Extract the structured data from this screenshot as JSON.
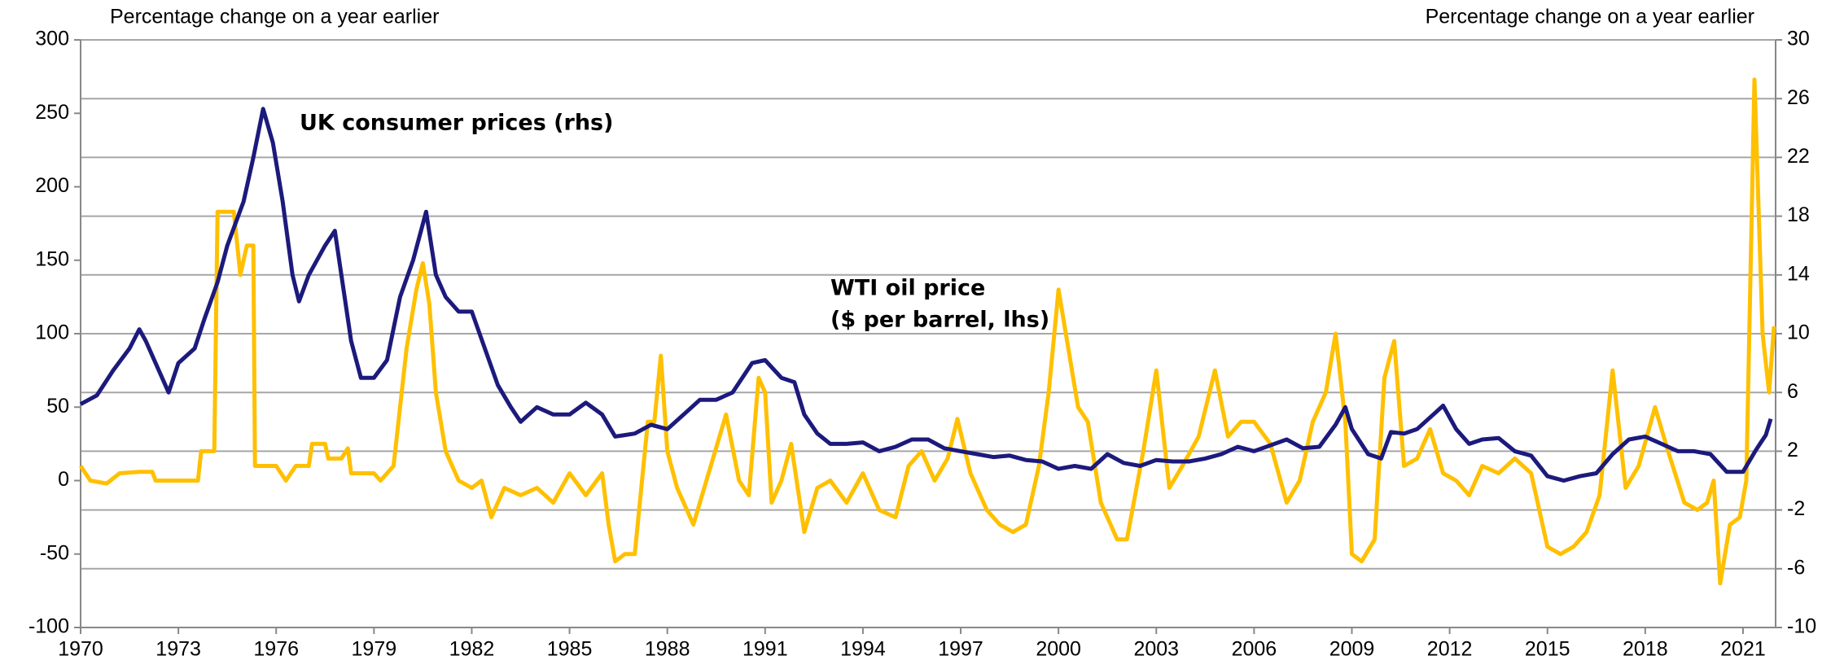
{
  "chart_data": {
    "type": "line",
    "ylabel": "Percentage change on a year earlier",
    "y2label": "Percentage change on a year earlier",
    "xlim": [
      1970,
      2022
    ],
    "xticks": [
      1970,
      1973,
      1976,
      1979,
      1982,
      1985,
      1988,
      1991,
      1994,
      1997,
      2000,
      2003,
      2006,
      2009,
      2012,
      2015,
      2018,
      2021
    ],
    "ylim": [
      -100,
      300
    ],
    "yticks": [
      -100,
      -50,
      0,
      50,
      100,
      150,
      200,
      250,
      300
    ],
    "y2lim": [
      -10,
      30
    ],
    "y2ticks": [
      -10,
      -6,
      -2,
      2,
      6,
      10,
      14,
      18,
      22,
      26,
      30
    ],
    "grid": true,
    "series": [
      {
        "name": "UK consumer prices (rhs)",
        "color": "#1c1a7c",
        "axis": "y2",
        "x": [
          1970,
          1970.5,
          1971,
          1971.5,
          1971.8,
          1972,
          1972.3,
          1972.7,
          1973,
          1973.5,
          1973.8,
          1974.2,
          1974.5,
          1975,
          1975.3,
          1975.6,
          1975.9,
          1976.2,
          1976.5,
          1976.7,
          1977,
          1977.5,
          1977.8,
          1978,
          1978.3,
          1978.6,
          1979,
          1979.4,
          1979.8,
          1980.2,
          1980.6,
          1980.9,
          1981.2,
          1981.6,
          1982,
          1982.4,
          1982.8,
          1983.2,
          1983.5,
          1984,
          1984.5,
          1985,
          1985.5,
          1986,
          1986.4,
          1987,
          1987.5,
          1988,
          1988.5,
          1989,
          1989.5,
          1990,
          1990.6,
          1991,
          1991.5,
          1991.9,
          1992.2,
          1992.6,
          1993,
          1993.5,
          1994,
          1994.5,
          1995,
          1995.5,
          1996,
          1996.5,
          1997,
          1997.5,
          1998,
          1998.5,
          1999,
          1999.5,
          2000,
          2000.5,
          2001,
          2001.5,
          2002,
          2002.5,
          2003,
          2003.5,
          2004,
          2004.5,
          2005,
          2005.5,
          2006,
          2006.5,
          2007,
          2007.5,
          2008,
          2008.5,
          2008.8,
          2009,
          2009.5,
          2009.9,
          2010.2,
          2010.6,
          2011,
          2011.5,
          2011.8,
          2012.2,
          2012.6,
          2013,
          2013.5,
          2014,
          2014.5,
          2015,
          2015.5,
          2016,
          2016.5,
          2017,
          2017.5,
          2018,
          2018.5,
          2019,
          2019.5,
          2020,
          2020.5,
          2021,
          2021.4,
          2021.7,
          2021.85
        ],
        "values": [
          5.2,
          5.8,
          7.5,
          9.0,
          10.3,
          9.5,
          8.0,
          6.0,
          8.0,
          9.0,
          11,
          13.5,
          16,
          19,
          22,
          25.3,
          23,
          19,
          14,
          12.2,
          14,
          16,
          17,
          14,
          9.5,
          7,
          7,
          8.2,
          12.5,
          15,
          18.3,
          14,
          12.5,
          11.5,
          11.5,
          9,
          6.5,
          5,
          4,
          5,
          4.5,
          4.5,
          5.3,
          4.5,
          3,
          3.2,
          3.8,
          3.5,
          4.5,
          5.5,
          5.5,
          6,
          8,
          8.2,
          7,
          6.7,
          4.5,
          3.2,
          2.5,
          2.5,
          2.6,
          2.0,
          2.3,
          2.8,
          2.8,
          2.2,
          2.0,
          1.8,
          1.6,
          1.7,
          1.4,
          1.3,
          0.8,
          1.0,
          0.8,
          1.8,
          1.2,
          1.0,
          1.4,
          1.3,
          1.3,
          1.5,
          1.8,
          2.3,
          2.0,
          2.4,
          2.8,
          2.2,
          2.3,
          3.8,
          5.0,
          3.5,
          1.8,
          1.5,
          3.3,
          3.2,
          3.5,
          4.5,
          5.1,
          3.5,
          2.5,
          2.8,
          2.9,
          2.0,
          1.7,
          0.3,
          0.0,
          0.3,
          0.5,
          1.8,
          2.8,
          3.0,
          2.5,
          2.0,
          2.0,
          1.8,
          0.6,
          0.6,
          2.1,
          3.1,
          4.2
        ]
      },
      {
        "name": "WTI oil price",
        "name_note": "($ per barrel, lhs)",
        "color": "#ffc000",
        "axis": "y",
        "x": [
          1970,
          1970.3,
          1970.8,
          1971.2,
          1971.8,
          1972.2,
          1972.3,
          1973.6,
          1973.7,
          1974.1,
          1974.2,
          1974.7,
          1974.9,
          1975.1,
          1975.3,
          1975.35,
          1976,
          1976.3,
          1976.6,
          1977,
          1977.1,
          1977.5,
          1977.6,
          1978,
          1978.2,
          1978.3,
          1979,
          1979.2,
          1979.6,
          1979.8,
          1980,
          1980.3,
          1980.5,
          1980.7,
          1980.9,
          1981.2,
          1981.6,
          1982,
          1982.3,
          1982.6,
          1983,
          1983.5,
          1984,
          1984.5,
          1985,
          1985.5,
          1986,
          1986.2,
          1986.4,
          1986.7,
          1987,
          1987.4,
          1987.6,
          1987.8,
          1988,
          1988.3,
          1988.8,
          1989.2,
          1989.6,
          1989.8,
          1990.2,
          1990.5,
          1990.8,
          1991,
          1991.2,
          1991.5,
          1991.8,
          1992.2,
          1992.6,
          1993,
          1993.5,
          1994,
          1994.5,
          1995,
          1995.4,
          1995.8,
          1996.2,
          1996.6,
          1996.9,
          1997.3,
          1997.8,
          1998.2,
          1998.6,
          1999,
          1999.4,
          1999.7,
          2000,
          2000.3,
          2000.6,
          2000.9,
          2001.3,
          2001.8,
          2002.1,
          2002.6,
          2003,
          2003.4,
          2003.8,
          2004.3,
          2004.8,
          2005.2,
          2005.6,
          2006,
          2006.5,
          2007,
          2007.4,
          2007.8,
          2008.2,
          2008.5,
          2008.8,
          2009,
          2009.3,
          2009.7,
          2010,
          2010.3,
          2010.6,
          2011,
          2011.4,
          2011.8,
          2012.2,
          2012.6,
          2013,
          2013.5,
          2014,
          2014.5,
          2015,
          2015.4,
          2015.8,
          2016.2,
          2016.6,
          2017,
          2017.4,
          2017.8,
          2018.3,
          2018.7,
          2019.2,
          2019.6,
          2019.9,
          2020.1,
          2020.3,
          2020.6,
          2020.9,
          2021.1,
          2021.35,
          2021.6,
          2021.8,
          2021.95
        ],
        "values": [
          10,
          0,
          -2,
          5,
          6,
          6,
          0,
          0,
          20,
          20,
          183,
          183,
          140,
          160,
          160,
          10,
          10,
          0,
          10,
          10,
          25,
          25,
          15,
          15,
          22,
          5,
          5,
          0,
          10,
          50,
          90,
          130,
          148,
          120,
          60,
          20,
          0,
          -5,
          0,
          -25,
          -5,
          -10,
          -5,
          -15,
          5,
          -10,
          5,
          -30,
          -55,
          -50,
          -50,
          40,
          40,
          85,
          20,
          -5,
          -30,
          0,
          30,
          45,
          0,
          -10,
          70,
          60,
          -15,
          0,
          25,
          -35,
          -5,
          0,
          -15,
          5,
          -20,
          -25,
          10,
          20,
          0,
          15,
          42,
          5,
          -20,
          -30,
          -35,
          -30,
          10,
          60,
          130,
          90,
          50,
          40,
          -15,
          -40,
          -40,
          20,
          75,
          -5,
          10,
          30,
          75,
          30,
          40,
          40,
          25,
          -15,
          0,
          40,
          60,
          100,
          40,
          -50,
          -55,
          -40,
          70,
          95,
          10,
          15,
          35,
          5,
          0,
          -10,
          10,
          5,
          15,
          5,
          -45,
          -50,
          -45,
          -35,
          -10,
          75,
          -5,
          10,
          50,
          20,
          -15,
          -20,
          -15,
          0,
          -70,
          -30,
          -25,
          0,
          273,
          100,
          60,
          105
        ]
      }
    ]
  }
}
